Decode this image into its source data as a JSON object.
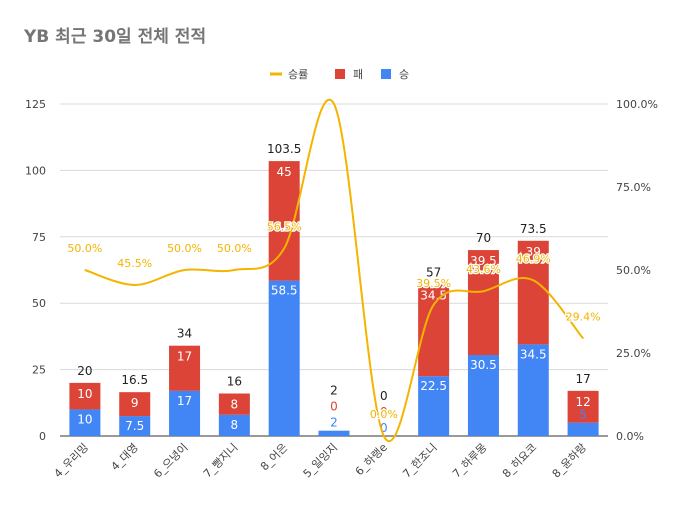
{
  "chart_data": {
    "type": "bar",
    "title": "YB 최근 30일 전체 전적",
    "categories": [
      "4_우리밍",
      "4_대영",
      "6_으녕이",
      "7_빵지니",
      "8_어은",
      "5_일잉지",
      "6_하랭e",
      "7_한조니",
      "7_하루몽",
      "8_히요코",
      "8_윤하랑"
    ],
    "series": [
      {
        "name": "승",
        "color": "#4285f4",
        "values": [
          10,
          7.5,
          17,
          8,
          58.5,
          2,
          0,
          22.5,
          30.5,
          34.5,
          5
        ],
        "labels": [
          "10",
          "7.5",
          "17",
          "8",
          "58.5",
          "2",
          "0",
          "22.5",
          "30.5",
          "34.5",
          "5"
        ]
      },
      {
        "name": "패",
        "color": "#db4437",
        "values": [
          10,
          9,
          17,
          8,
          45,
          0,
          0,
          34.5,
          39.5,
          39,
          12
        ],
        "labels": [
          "10",
          "9",
          "17",
          "8",
          "45",
          "0",
          "0",
          "34.5",
          "39.5",
          "39",
          "12"
        ]
      }
    ],
    "line_series": {
      "name": "승률",
      "color": "#f4b400",
      "values": [
        50.0,
        45.5,
        50.0,
        50.0,
        56.5,
        100.0,
        0.0,
        39.5,
        43.6,
        46.9,
        29.4
      ],
      "labels": [
        "50.0%",
        "45.5%",
        "50.0%",
        "50.0%",
        "56.5%",
        "",
        "0.0%",
        "39.5%",
        "43.6%",
        "46.9%",
        "29.4%"
      ]
    },
    "totals": [
      "20",
      "16.5",
      "34",
      "16",
      "103.5",
      "2",
      "0",
      "57",
      "70",
      "73.5",
      "17"
    ],
    "ylim": [
      0,
      125
    ],
    "yticks": [
      "0",
      "25",
      "50",
      "75",
      "100",
      "125"
    ],
    "y2lim": [
      0,
      100
    ],
    "y2ticks": [
      "0.0%",
      "25.0%",
      "50.0%",
      "75.0%",
      "100.0%"
    ],
    "legend": {
      "position": "top",
      "items": [
        "승률",
        "패",
        "승"
      ]
    },
    "grid": true
  }
}
